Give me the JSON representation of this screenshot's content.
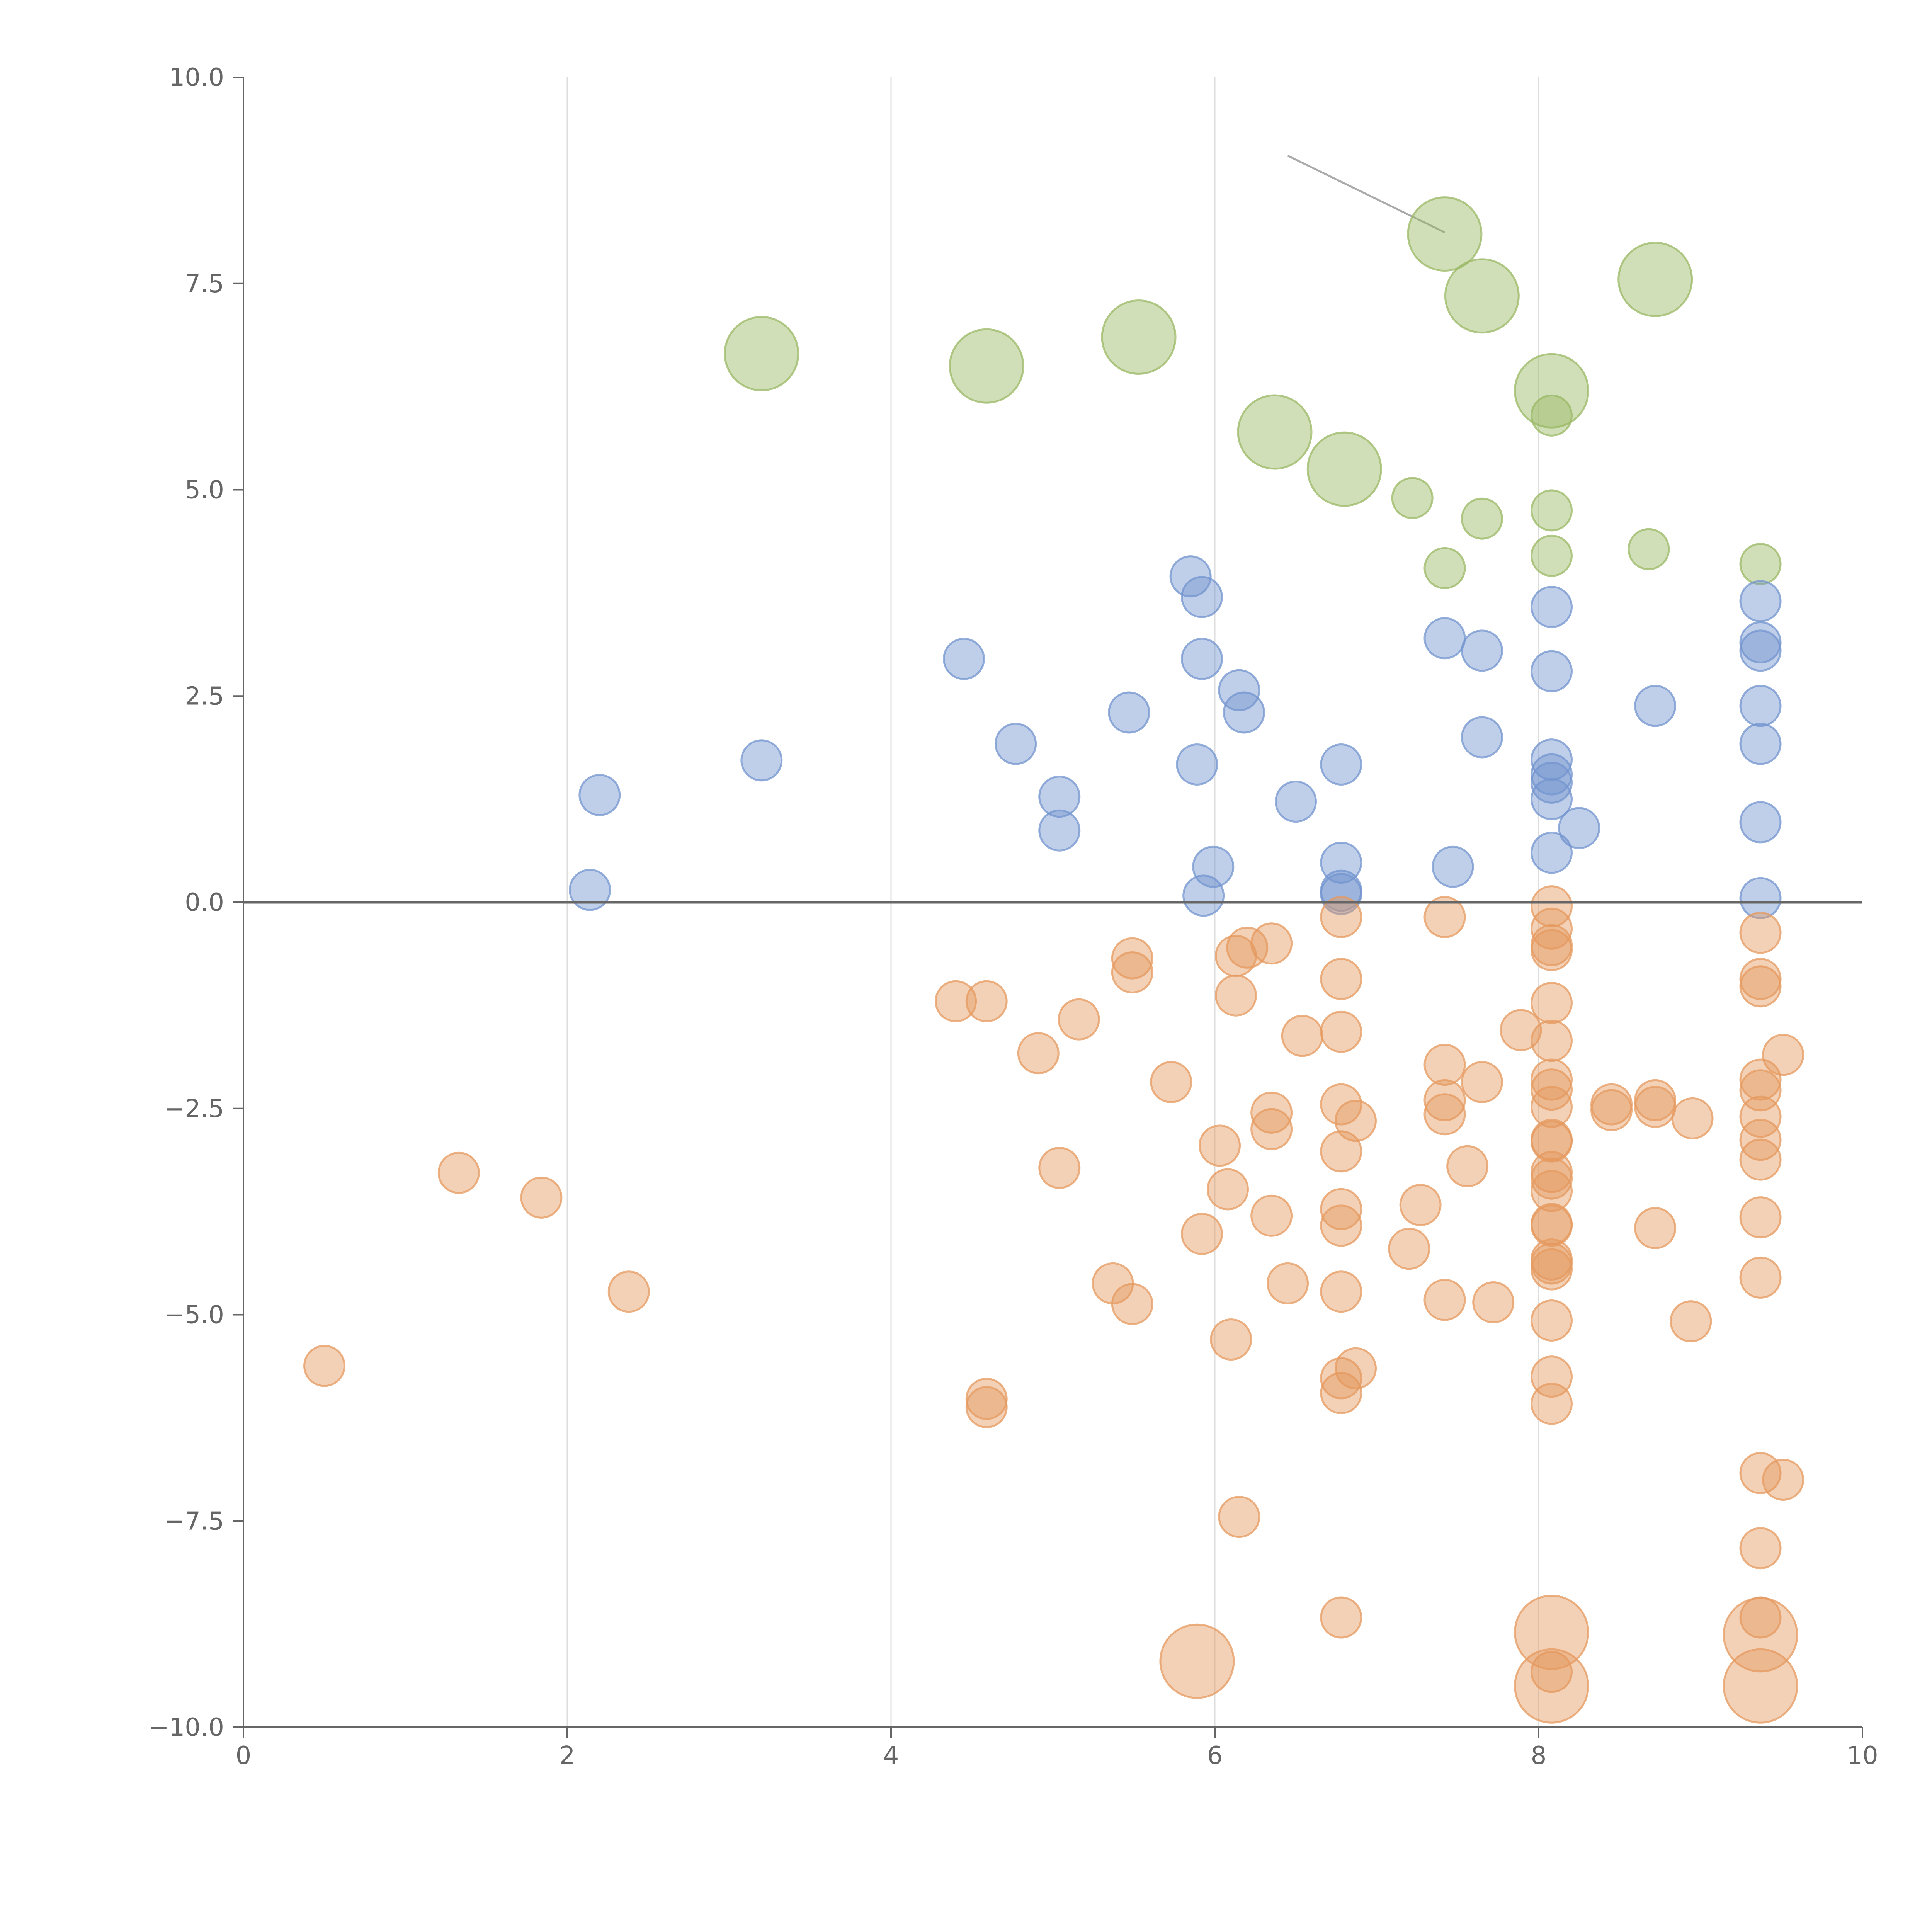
{
  "chart_data": {
    "type": "scatter",
    "title": "",
    "xlabel": "",
    "ylabel": "",
    "xlim": [
      0,
      10
    ],
    "ylim": [
      -10,
      10
    ],
    "grid": "vertical",
    "legend": "none",
    "x_ticks": [
      "0",
      "2",
      "4",
      "6",
      "8",
      "10"
    ],
    "y_ticks": [
      "10.0",
      "7.5",
      "5.0",
      "2.5",
      "0.0",
      "−2.5",
      "−5.0",
      "−7.5",
      "−10.0"
    ],
    "zero_line": 0,
    "series": [
      {
        "color": "#9ab864",
        "points": [
          [
            3.2,
            6.65,
            1
          ],
          [
            4.59,
            6.5,
            1
          ],
          [
            5.53,
            6.85,
            1
          ],
          [
            7.42,
            8.1,
            1
          ],
          [
            7.65,
            7.35,
            1
          ],
          [
            8.72,
            7.55,
            1
          ],
          [
            8.08,
            6.2,
            1
          ],
          [
            6.37,
            5.7,
            1
          ],
          [
            6.8,
            5.25,
            1
          ],
          [
            8.08,
            5.9,
            0.4
          ],
          [
            7.22,
            4.9,
            0.4
          ],
          [
            7.65,
            4.65,
            0.4
          ],
          [
            8.08,
            4.75,
            0.4
          ],
          [
            8.08,
            4.2,
            0.4
          ],
          [
            7.42,
            4.05,
            0.4
          ],
          [
            8.68,
            4.28,
            0.4
          ],
          [
            9.37,
            4.1,
            0.4
          ]
        ]
      },
      {
        "color": "#7394cf",
        "points": [
          [
            2.14,
            0.15,
            0.4
          ],
          [
            2.2,
            1.3,
            0.4
          ],
          [
            3.2,
            1.72,
            0.4
          ],
          [
            4.45,
            2.95,
            0.4
          ],
          [
            4.77,
            1.92,
            0.4
          ],
          [
            5.04,
            1.28,
            0.4
          ],
          [
            5.04,
            0.87,
            0.4
          ],
          [
            5.47,
            2.3,
            0.4
          ],
          [
            5.85,
            3.95,
            0.4
          ],
          [
            5.92,
            3.7,
            0.4
          ],
          [
            5.92,
            2.95,
            0.4
          ],
          [
            5.89,
            1.67,
            0.4
          ],
          [
            5.99,
            0.43,
            0.4
          ],
          [
            5.93,
            0.08,
            0.4
          ],
          [
            6.15,
            2.57,
            0.4
          ],
          [
            6.18,
            2.3,
            0.4
          ],
          [
            6.5,
            1.22,
            0.4
          ],
          [
            6.78,
            1.67,
            0.4
          ],
          [
            6.78,
            0.48,
            0.4
          ],
          [
            6.78,
            0.14,
            0.4
          ],
          [
            6.78,
            0.1,
            0.4
          ],
          [
            7.42,
            3.2,
            0.4
          ],
          [
            7.65,
            3.05,
            0.4
          ],
          [
            7.65,
            2.0,
            0.4
          ],
          [
            7.47,
            0.43,
            0.4
          ],
          [
            8.08,
            3.58,
            0.4
          ],
          [
            8.08,
            2.8,
            0.4
          ],
          [
            8.08,
            1.73,
            0.4
          ],
          [
            8.08,
            1.55,
            0.4
          ],
          [
            8.08,
            1.45,
            0.4
          ],
          [
            8.08,
            1.25,
            0.4
          ],
          [
            8.08,
            0.6,
            0.4
          ],
          [
            8.25,
            0.9,
            0.4
          ],
          [
            8.72,
            2.38,
            0.4
          ],
          [
            9.37,
            3.65,
            0.4
          ],
          [
            9.37,
            3.15,
            0.4
          ],
          [
            9.37,
            3.05,
            0.4
          ],
          [
            9.37,
            2.38,
            0.4
          ],
          [
            9.37,
            1.92,
            0.4
          ],
          [
            9.37,
            0.97,
            0.4
          ],
          [
            9.37,
            0.05,
            0.4
          ]
        ]
      },
      {
        "color": "#e59a5f",
        "points": [
          [
            0.5,
            -5.62,
            0.4
          ],
          [
            1.33,
            -3.28,
            0.4
          ],
          [
            1.84,
            -3.58,
            0.4
          ],
          [
            2.38,
            -4.72,
            0.4
          ],
          [
            4.4,
            -1.2,
            0.4
          ],
          [
            4.59,
            -1.2,
            0.4
          ],
          [
            4.91,
            -1.83,
            0.4
          ],
          [
            5.16,
            -1.42,
            0.4
          ],
          [
            5.04,
            -3.22,
            0.4
          ],
          [
            4.59,
            -6.02,
            0.4
          ],
          [
            4.59,
            -6.12,
            0.4
          ],
          [
            5.37,
            -4.62,
            0.4
          ],
          [
            5.49,
            -4.87,
            0.4
          ],
          [
            5.49,
            -0.68,
            0.4
          ],
          [
            5.49,
            -0.85,
            0.4
          ],
          [
            5.73,
            -2.18,
            0.4
          ],
          [
            5.92,
            -4.02,
            0.4
          ],
          [
            6.03,
            -2.95,
            0.4
          ],
          [
            6.08,
            -3.48,
            0.4
          ],
          [
            6.1,
            -5.3,
            0.4
          ],
          [
            6.13,
            -0.65,
            0.4
          ],
          [
            6.2,
            -0.55,
            0.4
          ],
          [
            6.13,
            -1.13,
            0.4
          ],
          [
            6.15,
            -7.45,
            0.4
          ],
          [
            6.35,
            -0.5,
            0.4
          ],
          [
            6.35,
            -2.55,
            0.4
          ],
          [
            6.35,
            -2.75,
            0.4
          ],
          [
            6.35,
            -3.8,
            0.4
          ],
          [
            6.45,
            -4.62,
            0.4
          ],
          [
            6.54,
            -1.62,
            0.4
          ],
          [
            6.78,
            -0.18,
            0.4
          ],
          [
            6.78,
            -0.93,
            0.4
          ],
          [
            6.78,
            -1.57,
            0.4
          ],
          [
            6.78,
            -2.45,
            0.4
          ],
          [
            6.78,
            -3.02,
            0.4
          ],
          [
            6.78,
            -3.72,
            0.4
          ],
          [
            6.78,
            -3.92,
            0.4
          ],
          [
            6.78,
            -4.72,
            0.4
          ],
          [
            6.78,
            -5.77,
            0.4
          ],
          [
            6.78,
            -5.95,
            0.4
          ],
          [
            6.78,
            -8.67,
            0.4
          ],
          [
            6.87,
            -2.65,
            0.4
          ],
          [
            6.87,
            -5.65,
            0.4
          ],
          [
            7.2,
            -4.2,
            0.4
          ],
          [
            7.27,
            -3.67,
            0.4
          ],
          [
            7.42,
            -0.18,
            0.4
          ],
          [
            7.42,
            -1.97,
            0.4
          ],
          [
            7.42,
            -2.4,
            0.4
          ],
          [
            7.42,
            -2.57,
            0.4
          ],
          [
            7.42,
            -4.82,
            0.4
          ],
          [
            7.56,
            -3.2,
            0.4
          ],
          [
            7.65,
            -2.18,
            0.4
          ],
          [
            7.72,
            -4.85,
            0.4
          ],
          [
            7.89,
            -1.55,
            0.4
          ],
          [
            8.08,
            -0.05,
            0.4
          ],
          [
            8.08,
            -0.32,
            0.4
          ],
          [
            8.08,
            -0.52,
            0.4
          ],
          [
            8.08,
            -0.58,
            0.4
          ],
          [
            8.08,
            -1.22,
            0.4
          ],
          [
            8.08,
            -1.68,
            0.4
          ],
          [
            8.08,
            -2.15,
            0.4
          ],
          [
            8.08,
            -2.27,
            0.4
          ],
          [
            8.08,
            -2.48,
            0.4
          ],
          [
            8.08,
            -2.88,
            0.4
          ],
          [
            8.08,
            -2.9,
            0.4
          ],
          [
            8.08,
            -3.27,
            0.4
          ],
          [
            8.08,
            -3.35,
            0.4
          ],
          [
            8.08,
            -3.5,
            0.4
          ],
          [
            8.08,
            -3.9,
            0.4
          ],
          [
            8.08,
            -3.92,
            0.4
          ],
          [
            8.08,
            -4.33,
            0.4
          ],
          [
            8.08,
            -4.38,
            0.4
          ],
          [
            8.08,
            -4.45,
            0.4
          ],
          [
            8.08,
            -5.07,
            0.4
          ],
          [
            8.08,
            -5.75,
            0.4
          ],
          [
            8.08,
            -6.08,
            0.4
          ],
          [
            8.08,
            -9.33,
            0.4
          ],
          [
            8.45,
            -2.45,
            0.4
          ],
          [
            8.45,
            -2.52,
            0.4
          ],
          [
            8.72,
            -2.4,
            0.4
          ],
          [
            8.72,
            -2.48,
            0.4
          ],
          [
            8.72,
            -3.95,
            0.4
          ],
          [
            8.95,
            -2.62,
            0.4
          ],
          [
            8.94,
            -5.08,
            0.4
          ],
          [
            9.37,
            -0.37,
            0.4
          ],
          [
            9.37,
            -0.93,
            0.4
          ],
          [
            9.37,
            -1.02,
            0.4
          ],
          [
            9.37,
            -2.15,
            0.4
          ],
          [
            9.37,
            -2.28,
            0.4
          ],
          [
            9.37,
            -2.6,
            0.4
          ],
          [
            9.37,
            -2.88,
            0.4
          ],
          [
            9.37,
            -3.12,
            0.4
          ],
          [
            9.37,
            -3.82,
            0.4
          ],
          [
            9.37,
            -4.55,
            0.4
          ],
          [
            9.37,
            -6.92,
            0.4
          ],
          [
            9.37,
            -7.83,
            0.4
          ],
          [
            9.37,
            -8.67,
            0.4
          ],
          [
            9.51,
            -1.85,
            0.4
          ],
          [
            9.51,
            -7.0,
            0.4
          ],
          [
            5.89,
            -9.2,
            1
          ],
          [
            8.08,
            -8.85,
            1
          ],
          [
            9.37,
            -8.88,
            1
          ],
          [
            8.08,
            -9.5,
            1
          ],
          [
            9.37,
            -9.5,
            1
          ]
        ]
      }
    ]
  }
}
